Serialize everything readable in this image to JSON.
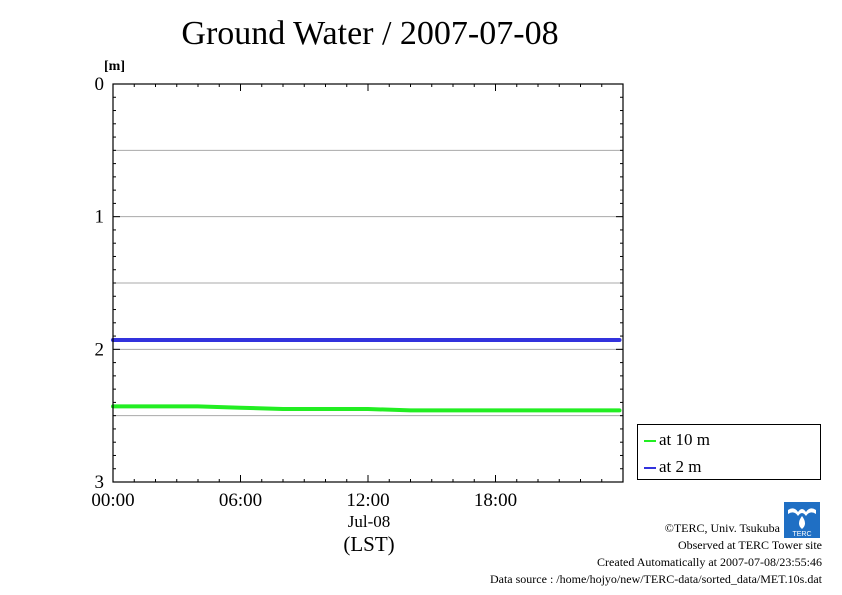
{
  "title": "Ground Water / 2007-07-08",
  "colors": {
    "at_10m": "#22ee22",
    "at_2m": "#3333dd",
    "grid": "#aaaaaa"
  },
  "chart_data": {
    "type": "line",
    "title": "Ground Water / 2007-07-08",
    "ylabel": "[m]",
    "ylim": [
      3,
      0
    ],
    "y_inverted": true,
    "y_ticks": [
      "0",
      "1",
      "2",
      "3"
    ],
    "xlim": [
      "2007-07-08 00:00",
      "2007-07-09 00:00"
    ],
    "x_ticks": [
      "00:00",
      "06:00",
      "12:00",
      "18:00"
    ],
    "x_date_label": "Jul-08",
    "x_tz_label": "(LST)",
    "grid": true,
    "legend_position": "right, outside below plot",
    "series": [
      {
        "name": "at 10 m",
        "color": "#22ee22",
        "x": [
          "00:00",
          "02:00",
          "04:00",
          "06:00",
          "08:00",
          "10:00",
          "12:00",
          "14:00",
          "16:00",
          "18:00",
          "20:00",
          "22:00",
          "23:50"
        ],
        "values": [
          2.43,
          2.43,
          2.43,
          2.44,
          2.45,
          2.45,
          2.45,
          2.46,
          2.46,
          2.46,
          2.46,
          2.46,
          2.46
        ]
      },
      {
        "name": "at 2 m",
        "color": "#3333dd",
        "x": [
          "00:00",
          "02:00",
          "04:00",
          "06:00",
          "08:00",
          "10:00",
          "12:00",
          "14:00",
          "16:00",
          "18:00",
          "20:00",
          "22:00",
          "23:50"
        ],
        "values": [
          1.93,
          1.93,
          1.93,
          1.93,
          1.93,
          1.93,
          1.93,
          1.93,
          1.93,
          1.93,
          1.93,
          1.93,
          1.93
        ]
      }
    ]
  },
  "legend": {
    "item1": "at 10 m",
    "item2": "at 2 m"
  },
  "credits": {
    "copyright": "©TERC, Univ. Tsukuba",
    "observed": "Observed at TERC Tower site",
    "created": "Created Automatically at 2007-07-08/23:55:46",
    "source": "Data source : /home/hojyo/new/TERC-data/sorted_data/MET.10s.dat"
  },
  "logo": {
    "icon": "terc-logo-icon",
    "text": "TERC"
  }
}
